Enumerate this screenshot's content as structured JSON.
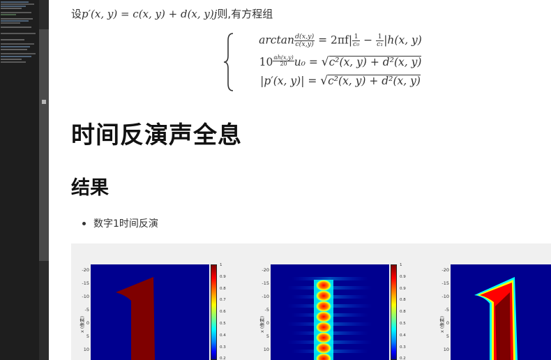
{
  "intro": {
    "prefix_cn": "设",
    "formula": "p′(x, y) = c(x, y) + d(x, y)j",
    "suffix_cn": "则,有方程组"
  },
  "equations": {
    "eq1": {
      "lhs": "arctan",
      "frac_num": "d(x,y)",
      "frac_den": "c(x,y)",
      "rhs_a": "= 2πf|",
      "f1_num": "1",
      "f1_den": "c₀",
      "minus": "−",
      "f2_num": "1",
      "f2_den": "c₁",
      "rhs_b": "|h(x, y)"
    },
    "eq2": {
      "base": "10",
      "exp_num": "αh(x,y)",
      "exp_den": "20",
      "u": "u₀ =",
      "sqrt": "c²(x, y) + d²(x, y)"
    },
    "eq3": {
      "lhs": "|p′(x, y)| =",
      "sqrt": "c²(x, y) + d²(x, y)"
    }
  },
  "heading1": "时间反演声全息",
  "heading2": "结果",
  "bullets": [
    "数字1时间反演"
  ],
  "figure": {
    "ytick_labels": [
      "-20",
      "-15",
      "-10",
      "-5",
      "0",
      "5",
      "10"
    ],
    "ylabel": "x (像素)",
    "colorbar1_ticks": [
      "1",
      "0.9",
      "0.8",
      "0.7",
      "0.6",
      "0.5",
      "0.4",
      "0.3",
      "0.2"
    ],
    "colorbar2_ticks": [
      "1",
      "0.9",
      "0.9",
      "0.8",
      "0.8",
      "0.5",
      "0.4",
      "0.3",
      "0.2"
    ],
    "colors": {
      "deep_blue": "#00008f",
      "dark_red": "#7f0000",
      "red": "#ff0000",
      "yellow": "#ffff00",
      "cyan": "#00ffff"
    }
  }
}
